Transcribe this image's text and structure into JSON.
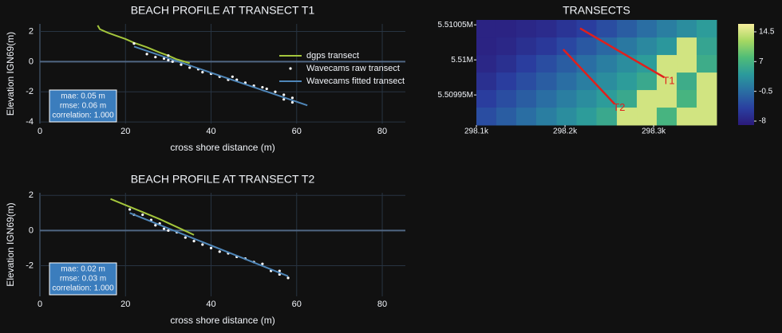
{
  "chart_data": [
    {
      "type": "line",
      "title": "BEACH PROFILE AT TRANSECT T1",
      "xlabel": "cross shore distance (m)",
      "ylabel": "Elevation IGN69(m)",
      "xlim": [
        0,
        85.4
      ],
      "ylim": [
        -4.1,
        2.5
      ],
      "xticks": [
        0,
        20,
        40,
        60,
        80
      ],
      "yticks": [
        -4,
        -2,
        0,
        2
      ],
      "grid": true,
      "showlegend": true,
      "series": [
        {
          "name": "dgps transect",
          "color": "#a4c63c",
          "mode": "lines",
          "x": [
            13.5,
            14,
            16,
            18,
            20,
            22,
            25,
            28,
            30,
            32,
            35
          ],
          "values": [
            2.4,
            2.15,
            1.9,
            1.7,
            1.5,
            1.25,
            0.95,
            0.6,
            0.4,
            0.15,
            -0.1
          ]
        },
        {
          "name": "Wavecams raw transect",
          "color": "#ffffff",
          "mode": "markers",
          "x": [
            22,
            25,
            27,
            29,
            30,
            30,
            31,
            33,
            35,
            37,
            38,
            40,
            42,
            44,
            45,
            46,
            48,
            50,
            52,
            53,
            55,
            57,
            57,
            59,
            59
          ],
          "values": [
            1.2,
            0.5,
            0.3,
            0.2,
            0.1,
            0.4,
            0.0,
            -0.2,
            -0.4,
            -0.5,
            -0.7,
            -0.8,
            -1.0,
            -1.2,
            -1.0,
            -1.2,
            -1.4,
            -1.6,
            -1.7,
            -1.8,
            -2.0,
            -2.2,
            -2.5,
            -2.4,
            -2.7
          ]
        },
        {
          "name": "Wavecams fitted transect",
          "color": "#4f86b8",
          "mode": "lines",
          "x": [
            22,
            62.5
          ],
          "values": [
            1.0,
            -2.9
          ]
        }
      ],
      "annotation": [
        "mae: 0.05 m",
        "rmse: 0.06 m",
        "correlation: 1.000"
      ]
    },
    {
      "type": "line",
      "title": "BEACH PROFILE AT TRANSECT T2",
      "xlabel": "cross shore distance (m)",
      "ylabel": "Elevation IGN69(m)",
      "xlim": [
        0,
        85.4
      ],
      "ylim": [
        -3.75,
        2.15
      ],
      "xticks": [
        0,
        20,
        40,
        60,
        80
      ],
      "yticks": [
        -2,
        0,
        2
      ],
      "grid": true,
      "showlegend": false,
      "series": [
        {
          "name": "dgps transect",
          "color": "#a4c63c",
          "mode": "lines",
          "x": [
            16.5,
            20,
            24,
            28,
            32,
            36
          ],
          "values": [
            1.8,
            1.45,
            1.05,
            0.65,
            0.2,
            -0.25
          ]
        },
        {
          "name": "Wavecams raw transect",
          "color": "#ffffff",
          "mode": "markers",
          "x": [
            21,
            22,
            24,
            26,
            27,
            28,
            29,
            30,
            32,
            34,
            36,
            38,
            40,
            42,
            44,
            46,
            48,
            50,
            52,
            54,
            56,
            56,
            58
          ],
          "values": [
            1.2,
            0.9,
            0.9,
            0.6,
            0.3,
            0.4,
            0.1,
            0.0,
            -0.1,
            -0.4,
            -0.6,
            -0.8,
            -1.0,
            -1.2,
            -1.3,
            -1.5,
            -1.6,
            -1.8,
            -1.9,
            -2.3,
            -2.3,
            -2.5,
            -2.7
          ]
        },
        {
          "name": "Wavecams fitted transect",
          "color": "#4f86b8",
          "mode": "lines",
          "x": [
            21,
            58
          ],
          "values": [
            1.0,
            -2.6
          ]
        }
      ],
      "annotation": [
        "mae: 0.02 m",
        "rmse: 0.03 m",
        "correlation: 1.000"
      ]
    },
    {
      "type": "heatmap",
      "title": "TRANSECTS",
      "xlim": [
        298100,
        298371
      ],
      "ylim": [
        5509907,
        5510057
      ],
      "xticks": [
        {
          "value": 298100,
          "label": "298.1k"
        },
        {
          "value": 298200,
          "label": "298.2k"
        },
        {
          "value": 298300,
          "label": "298.3k"
        }
      ],
      "yticks": [
        {
          "value": 5509950,
          "label": "5.50995M"
        },
        {
          "value": 5510000,
          "label": "5.51M"
        },
        {
          "value": 5510050,
          "label": "5.51005M"
        }
      ],
      "x": [
        298111,
        298134,
        298156,
        298179,
        298202,
        298224,
        298247,
        298270,
        298292,
        298315,
        298337,
        298360
      ],
      "y": [
        5509920,
        5509945,
        5509970,
        5509995,
        5510020,
        5510045
      ],
      "z": [
        [
          -3.5,
          -2,
          -0.5,
          1,
          2.5,
          4,
          5.5,
          14.5,
          14.5,
          7,
          14.5,
          14.5
        ],
        [
          -5,
          -3.5,
          -2,
          -0.5,
          1,
          2.5,
          4,
          5.5,
          14.5,
          14.5,
          7,
          14.5
        ],
        [
          -6.5,
          -5,
          -3.5,
          -2,
          -0.5,
          1,
          2.5,
          4,
          5.5,
          14.5,
          6,
          14.5
        ],
        [
          -7.5,
          -6.5,
          -5,
          -3.5,
          -2,
          -0.5,
          1,
          2.5,
          4,
          14.5,
          14.5,
          6
        ],
        [
          -8,
          -7.5,
          -6.5,
          -5.5,
          -4,
          -2.5,
          -1,
          0.5,
          2,
          3.5,
          14.5,
          5
        ],
        [
          -8,
          -8,
          -7.5,
          -7,
          -6,
          -5,
          -3.5,
          -2,
          -0.5,
          1,
          2.5,
          4
        ]
      ],
      "zlim": [
        -9,
        16.5
      ],
      "zticks": [
        -8,
        -0.5,
        7,
        14.5
      ],
      "colorscale": [
        "#2b1a7a",
        "#2a3fa0",
        "#2a6ea3",
        "#2b9a9c",
        "#4fbc78",
        "#a6d862",
        "#f7ee9c"
      ],
      "transects": [
        {
          "name": "T1",
          "color": "#e0201c",
          "x": [
            298217,
            298312
          ],
          "y": [
            5510045,
            5509975
          ]
        },
        {
          "name": "T2",
          "color": "#e0201c",
          "x": [
            298198,
            298256
          ],
          "y": [
            5510015,
            5509937
          ]
        }
      ]
    }
  ]
}
